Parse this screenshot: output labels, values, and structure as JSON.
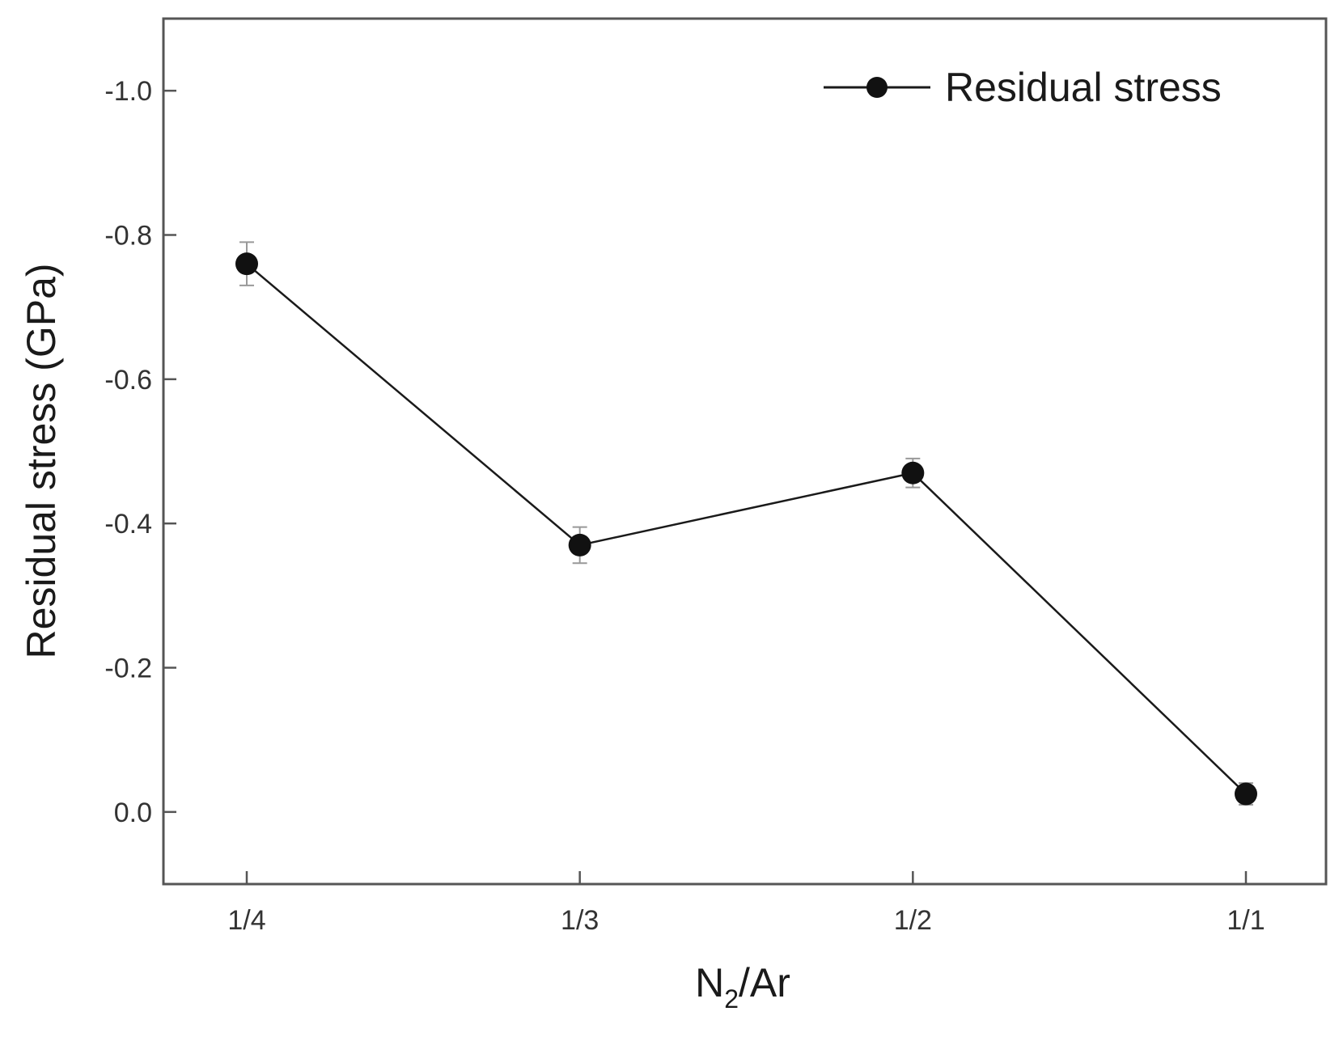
{
  "chart_data": {
    "type": "line",
    "categories": [
      "1/4",
      "1/3",
      "1/2",
      "1/1"
    ],
    "series": [
      {
        "name": "Residual stress",
        "values": [
          -0.76,
          -0.37,
          -0.47,
          -0.025
        ],
        "errors": [
          0.03,
          0.025,
          0.02,
          0.015
        ]
      }
    ],
    "xlabel_main": "N",
    "xlabel_sub": "2",
    "xlabel_tail": "/Ar",
    "ylabel": "Residual stress (GPa)",
    "ylim": [
      0.1,
      -1.1
    ],
    "y_axis_inverted": true,
    "yticks": [
      0.0,
      -0.2,
      -0.4,
      -0.6,
      -0.8,
      -1.0
    ],
    "ytick_labels": [
      "0.0",
      "-0.2",
      "-0.4",
      "-0.6",
      "-0.8",
      "-1.0"
    ],
    "grid": false,
    "legend_position": "top-right",
    "colors": {
      "line": "#1a1a1a",
      "marker": "#111111",
      "errorbar": "#999999",
      "axis": "#555555"
    }
  }
}
